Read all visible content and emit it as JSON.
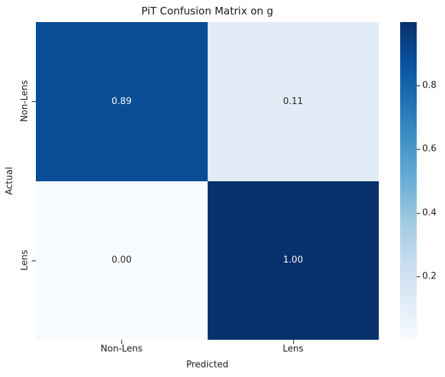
{
  "chart_data": {
    "type": "heatmap",
    "title": "PiT Confusion Matrix on g",
    "xlabel": "Predicted",
    "ylabel": "Actual",
    "x_categories": [
      "Non-Lens",
      "Lens"
    ],
    "y_categories": [
      "Non-Lens",
      "Lens"
    ],
    "values": [
      [
        0.89,
        0.11
      ],
      [
        0.0,
        1.0
      ]
    ],
    "cell_labels": [
      [
        "0.89",
        "0.11"
      ],
      [
        "0.00",
        "1.00"
      ]
    ],
    "cell_colors": [
      [
        "#084d96",
        "#e2ecf7"
      ],
      [
        "#f7fbff",
        "#08306b"
      ]
    ],
    "cell_text_colors": [
      [
        "#ffffff",
        "#262626"
      ],
      [
        "#262626",
        "#ffffff"
      ]
    ],
    "colormap": "Blues",
    "colormap_stops": [
      "#f7fbff",
      "#deebf7",
      "#c6dbef",
      "#9ecae1",
      "#6baed6",
      "#4292c6",
      "#2171b5",
      "#08519c",
      "#08306b"
    ],
    "colorbar": {
      "vmin": 0.0,
      "vmax": 1.0,
      "tick_values": [
        0.2,
        0.4,
        0.6,
        0.8
      ],
      "tick_labels": [
        "0.2",
        "0.4",
        "0.6",
        "0.8"
      ],
      "position": "right"
    },
    "grid": false,
    "legend": false
  }
}
